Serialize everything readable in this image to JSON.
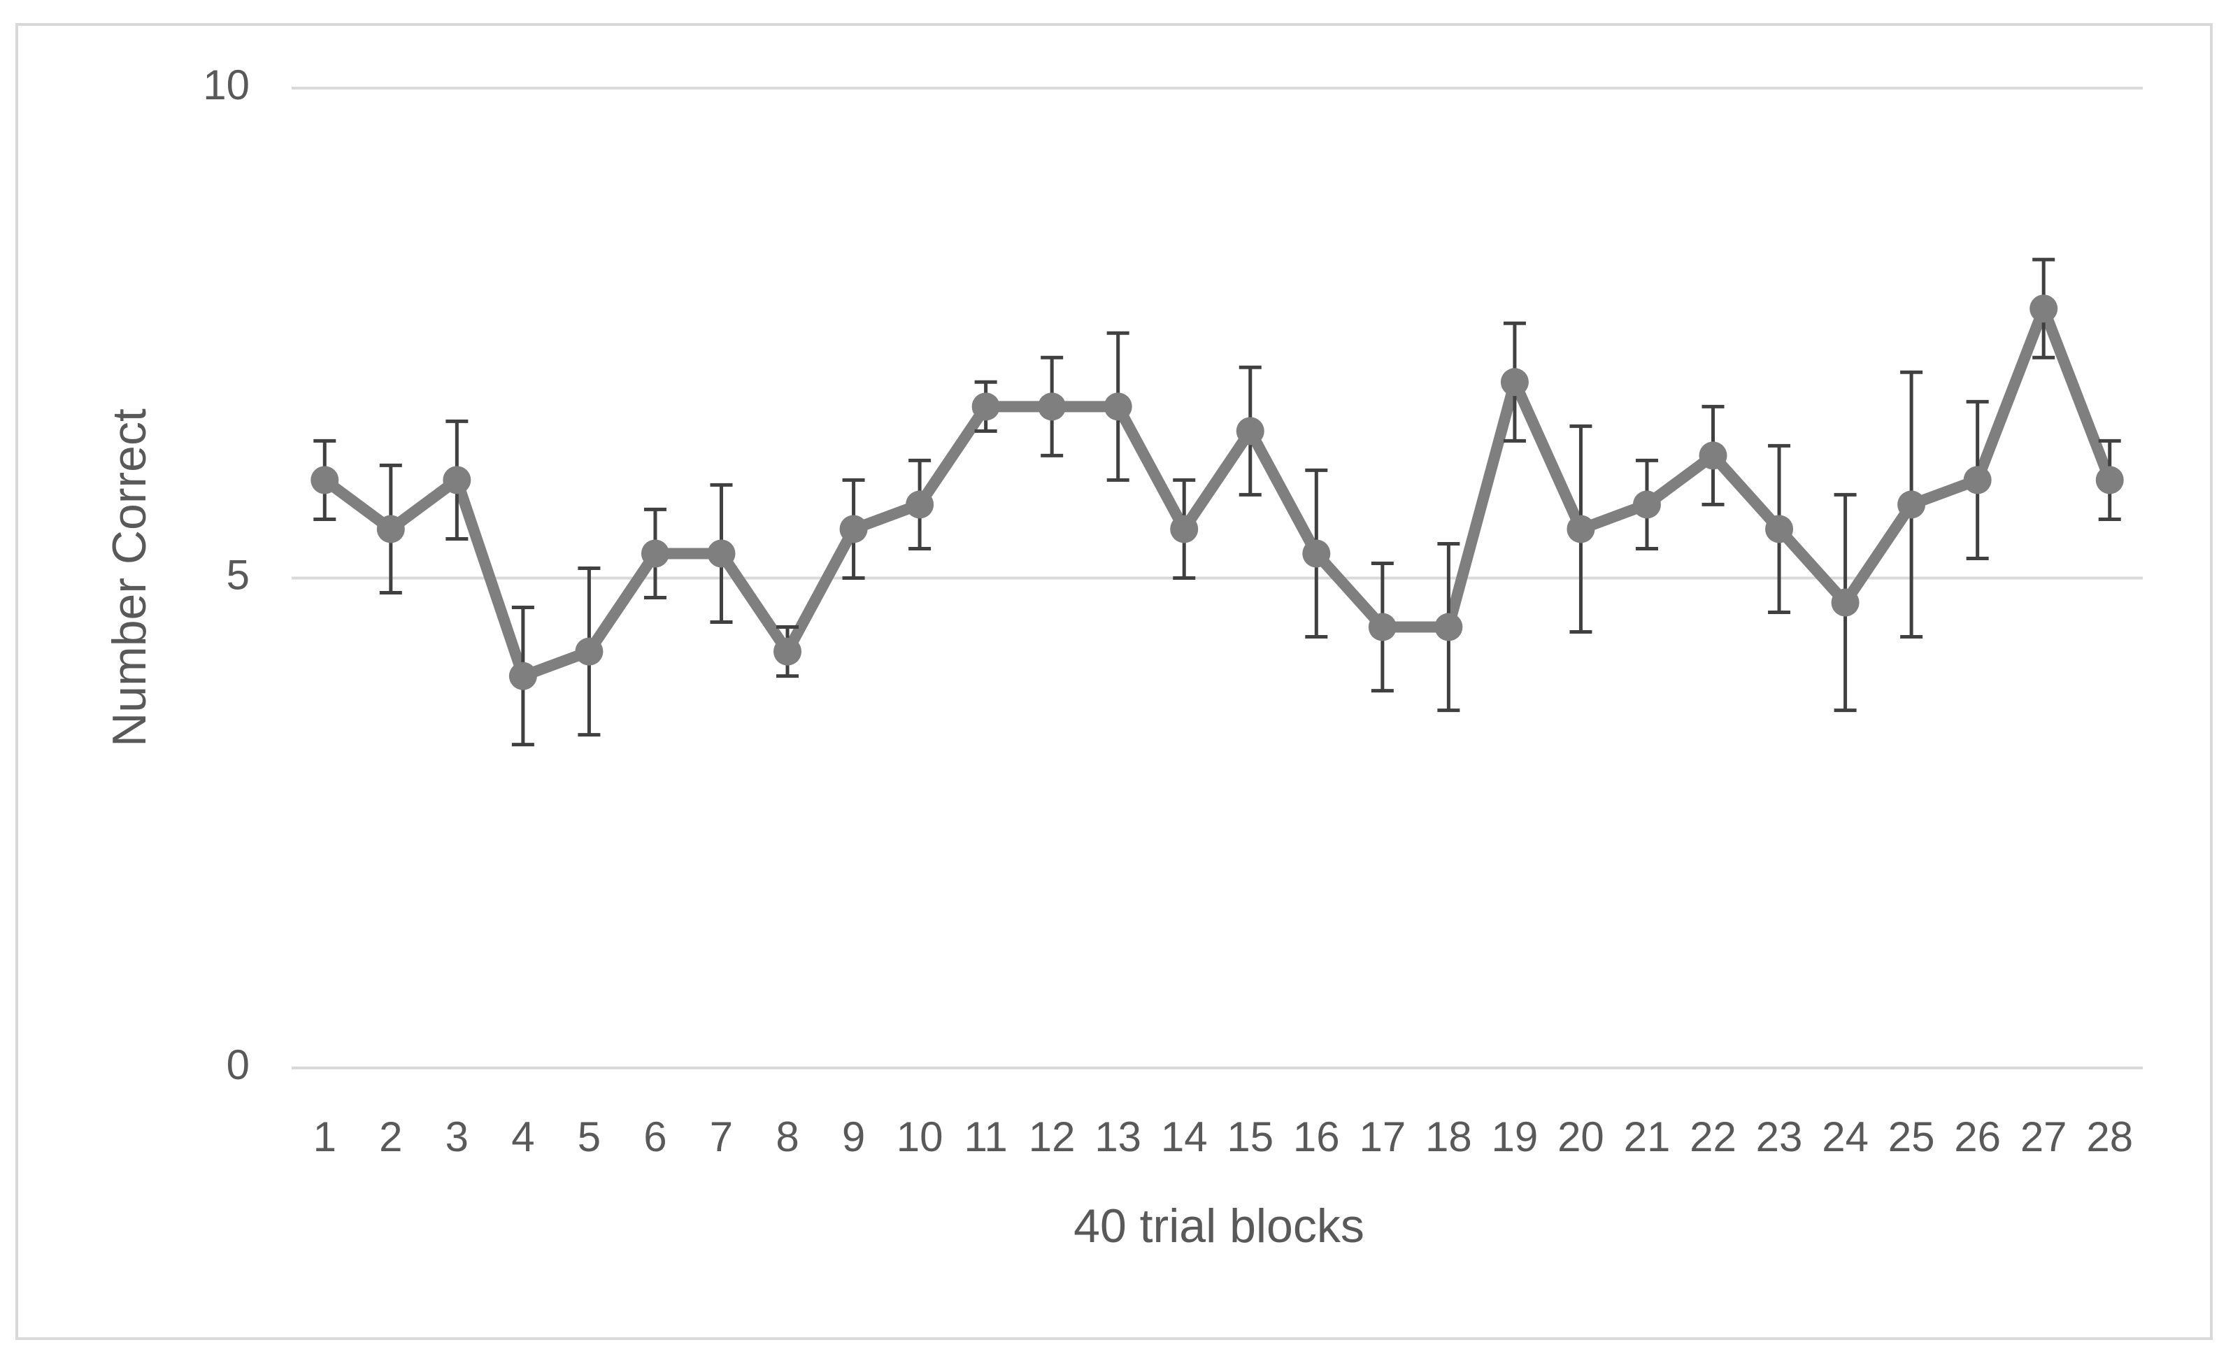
{
  "chart_data": {
    "type": "line",
    "x_label": "40 trial blocks",
    "y_label": "Number Correct",
    "categories": [
      "1",
      "2",
      "3",
      "4",
      "5",
      "6",
      "7",
      "8",
      "9",
      "10",
      "11",
      "12",
      "13",
      "14",
      "15",
      "16",
      "17",
      "18",
      "19",
      "20",
      "21",
      "22",
      "23",
      "24",
      "25",
      "26",
      "27",
      "28"
    ],
    "values": [
      6.0,
      5.5,
      6.0,
      4.0,
      4.25,
      5.25,
      5.25,
      4.25,
      5.5,
      5.75,
      6.75,
      6.75,
      6.75,
      5.5,
      6.5,
      5.25,
      4.5,
      4.5,
      7.0,
      5.5,
      5.75,
      6.25,
      5.5,
      4.75,
      5.75,
      6.0,
      7.75,
      6.0
    ],
    "errors": [
      0.4,
      0.65,
      0.6,
      0.7,
      0.85,
      0.45,
      0.7,
      0.25,
      0.5,
      0.45,
      0.25,
      0.5,
      0.75,
      0.5,
      0.65,
      0.85,
      0.65,
      0.85,
      0.6,
      1.05,
      0.45,
      0.5,
      0.85,
      1.1,
      1.35,
      0.8,
      0.5,
      0.4
    ],
    "color": "#7f7f7f",
    "error_color": "#404040",
    "ylim": [
      0,
      10
    ],
    "yticks": [
      0,
      5,
      10
    ],
    "grid": true
  }
}
